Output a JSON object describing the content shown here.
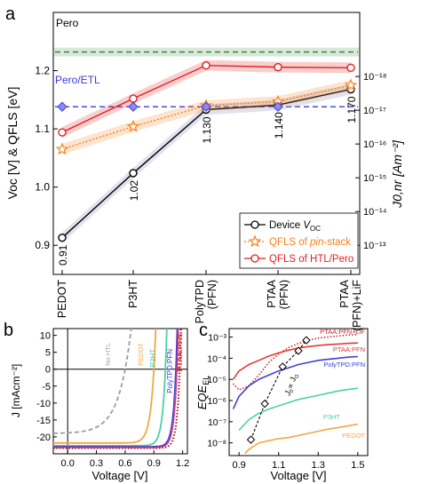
{
  "chart_data": [
    {
      "panel": "a",
      "type": "line",
      "categories": [
        "PEDOT",
        "P3HT",
        "PolyTPD (PFN)",
        "PTAA (PFN)",
        "PTAA (PFN)+LiF"
      ],
      "ylabel": "Voc [V] & QFLS [eV]",
      "y2label": "J0,nr [Am⁻²]",
      "ylim": [
        0.85,
        1.3
      ],
      "yticks": [
        "0.9",
        "1.0",
        "1.1",
        "1.2"
      ],
      "y2ticks": [
        "10⁻¹³",
        "10⁻¹⁴",
        "10⁻¹⁵",
        "10⁻¹⁶",
        "10⁻¹⁷",
        "10⁻¹⁸"
      ],
      "y2tick_values": [
        0.9,
        0.958,
        1.016,
        1.074,
        1.132,
        1.19
      ],
      "reference_lines": [
        {
          "label": "Pero",
          "value": 1.232,
          "color": "#2e7d32"
        },
        {
          "label": "Pero/ETL",
          "value": 1.138,
          "color": "#3a3adb"
        }
      ],
      "series": [
        {
          "name": "Device V_OC",
          "color": "#000000",
          "marker": "circle",
          "values": [
            0.913,
            1.024,
            1.133,
            1.141,
            1.168
          ]
        },
        {
          "name": "QFLS of pin-stack",
          "color": "#f58220",
          "marker": "star",
          "values": [
            1.065,
            1.104,
            1.14,
            1.147,
            1.175
          ]
        },
        {
          "name": "QFLS of HTL/Pero",
          "color": "#e02020",
          "marker": "circle",
          "values": [
            1.094,
            1.152,
            1.209,
            1.206,
            1.205
          ]
        }
      ],
      "point_labels": [
        "0.91",
        "1.02",
        "1.130",
        "1.140",
        "1.170"
      ],
      "legend": [
        "Device ",
        "V",
        "OC",
        "QFLS of ",
        "pin",
        "-stack",
        "QFLS of HTL/Pero"
      ],
      "panel_label": "a"
    },
    {
      "panel": "b",
      "type": "line",
      "xlabel": "Voltage [V]",
      "ylabel": "J [mAcm⁻²]",
      "xlim": [
        -0.15,
        1.25
      ],
      "ylim": [
        -25,
        12
      ],
      "xticks": [
        "0.0",
        "0.3",
        "0.6",
        "0.9",
        "1.2"
      ],
      "yticks": [
        "10",
        "5",
        "0",
        "-5",
        "-10",
        "-15",
        "-20"
      ],
      "series": [
        {
          "name": "No HTL",
          "color": "#9e9e9e",
          "dashed": true,
          "jsc": -18.8,
          "voc": 0.6,
          "n": 5
        },
        {
          "name": "PEDOT",
          "color": "#f4a742",
          "jsc": -21.8,
          "voc": 0.9,
          "n": 1.7
        },
        {
          "name": "P3HT",
          "color": "#4ad1a8",
          "jsc": -22.6,
          "voc": 1.02,
          "n": 1.4
        },
        {
          "name": "PolyTPD:PFN",
          "color": "#3f3fd6",
          "jsc": -22.9,
          "voc": 1.13,
          "n": 1.3
        },
        {
          "name": "PTAA:PFN",
          "color": "#b4459a",
          "jsc": -23.1,
          "voc": 1.14,
          "n": 1.3
        },
        {
          "name": "PTAA:PFN+LiF",
          "color": "#b71c1c",
          "dotted": true,
          "jsc": -23.3,
          "voc": 1.17,
          "n": 1.25
        }
      ],
      "labels": [
        "No HTL",
        "PEDOT",
        "P3HT",
        "PolyTPD:PFN",
        "PTAA:PFN"
      ],
      "panel_label": "b"
    },
    {
      "panel": "c",
      "type": "line",
      "xlabel": "Voltage [V]",
      "ylabel": "EQE_EL",
      "ylabel_main": "EQE",
      "ylabel_sub": "EL",
      "xlim": [
        0.85,
        1.55
      ],
      "ylim_log10": [
        -8.6,
        -2.6
      ],
      "xticks": [
        "0.9",
        "1.1",
        "1.3",
        "1.5"
      ],
      "yticks": [
        "10⁻³",
        "10⁻⁴",
        "10⁻⁵",
        "10⁻⁶",
        "10⁻⁷",
        "10⁻⁸"
      ],
      "series": [
        {
          "name": "PTAA:PFN+LiF",
          "color": "#c62828",
          "dotted": true,
          "x": [
            0.87,
            0.9,
            0.95,
            1.0,
            1.05,
            1.1,
            1.15,
            1.2,
            1.25,
            1.3,
            1.35,
            1.4,
            1.45,
            1.5
          ],
          "log_values": [
            -5.2,
            -5.5,
            -5.3,
            -4.8,
            -4.2,
            -3.8,
            -3.5,
            -3.3,
            -3.15,
            -3.05,
            -3.0,
            -2.95,
            -2.9,
            -2.88
          ]
        },
        {
          "name": "PTAA:PFN",
          "color": "#e53935",
          "x": [
            0.87,
            0.9,
            0.95,
            1.0,
            1.05,
            1.1,
            1.15,
            1.2,
            1.25,
            1.3,
            1.35,
            1.4,
            1.45,
            1.5
          ],
          "log_values": [
            -5.0,
            -4.6,
            -4.3,
            -4.1,
            -3.9,
            -3.75,
            -3.62,
            -3.52,
            -3.45,
            -3.4,
            -3.36,
            -3.33,
            -3.3,
            -3.28
          ]
        },
        {
          "name": "PolyTPD:PFN",
          "color": "#3f3fd6",
          "x": [
            0.87,
            0.9,
            0.95,
            1.0,
            1.05,
            1.1,
            1.15,
            1.2,
            1.25,
            1.3,
            1.35,
            1.4,
            1.45,
            1.5
          ],
          "log_values": [
            -6.4,
            -5.8,
            -5.3,
            -5.0,
            -4.8,
            -4.6,
            -4.45,
            -4.3,
            -4.2,
            -4.1,
            -4.05,
            -4.0,
            -3.95,
            -3.92
          ]
        },
        {
          "name": "P3HT",
          "color": "#4ad1a8",
          "x": [
            0.9,
            0.95,
            1.0,
            1.05,
            1.1,
            1.15,
            1.2,
            1.25,
            1.3,
            1.35,
            1.4,
            1.45,
            1.5
          ],
          "log_values": [
            -7.4,
            -6.9,
            -6.6,
            -6.4,
            -6.25,
            -6.1,
            -5.95,
            -5.85,
            -5.75,
            -5.65,
            -5.55,
            -5.48,
            -5.42
          ]
        },
        {
          "name": "PEDOT",
          "color": "#f4a742",
          "x": [
            0.93,
            0.95,
            1.0,
            1.05,
            1.1,
            1.15,
            1.2,
            1.25,
            1.3,
            1.35,
            1.4,
            1.45,
            1.5
          ],
          "log_values": [
            -8.5,
            -8.3,
            -8.0,
            -7.9,
            -7.8,
            -7.75,
            -7.65,
            -7.55,
            -7.45,
            -7.35,
            -7.28,
            -7.2,
            -7.12
          ]
        },
        {
          "name": "V_OC vs J_G",
          "color": "#000000",
          "dashed": true,
          "marker": "diamond",
          "x": [
            0.96,
            1.03,
            1.12,
            1.2,
            1.24
          ],
          "log_values": [
            -7.85,
            -6.15,
            -4.4,
            -3.65,
            -3.15
          ]
        }
      ],
      "labels": [
        "PTAA:PFN+LiF",
        "PTAA:PFN",
        "PolyTPD:PFN",
        "P3HT",
        "PEDOT"
      ],
      "annotation": {
        "j": "J",
        "sub0": "0",
        "mid": "∝ J",
        "subG": "G"
      },
      "panel_label": "c"
    }
  ]
}
